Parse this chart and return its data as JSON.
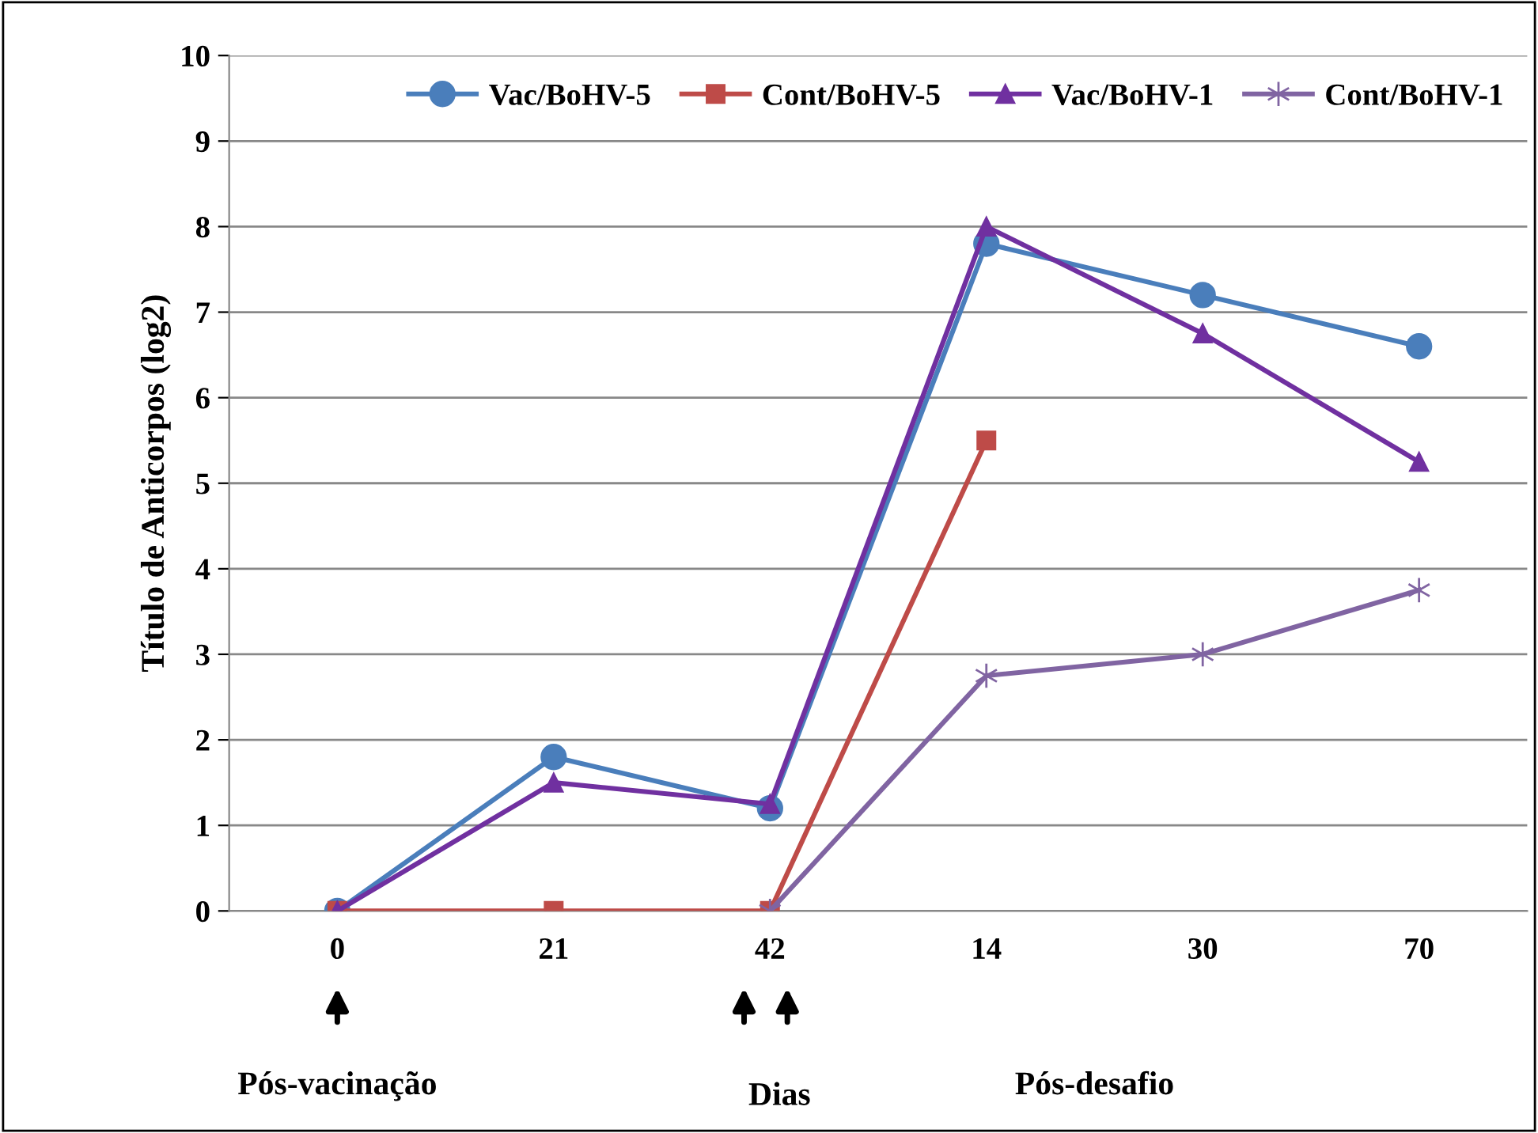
{
  "chart_data": {
    "type": "line",
    "categories": [
      "0",
      "21",
      "42",
      "14",
      "30",
      "70"
    ],
    "ylabel": "Título de Anticorpos (log2)",
    "xlabel": "Dias",
    "annotations": [
      "Pós-vacinação",
      "Pós-desafio"
    ],
    "ylim": [
      0,
      10
    ],
    "yticks": [
      0,
      1,
      2,
      3,
      4,
      5,
      6,
      7,
      8,
      9,
      10
    ],
    "grid": "y",
    "legend": "top",
    "series": [
      {
        "name": "Vac/BoHV-5",
        "color": "#4a7ebb",
        "marker": "circle",
        "values": [
          0,
          1.8,
          1.2,
          7.8,
          7.2,
          6.6
        ]
      },
      {
        "name": "Cont/BoHV-5",
        "color": "#be4b48",
        "marker": "square",
        "values": [
          0,
          0,
          0,
          5.5,
          null,
          null
        ]
      },
      {
        "name": "Vac/BoHV-1",
        "color": "#7030a0",
        "marker": "triangle",
        "values": [
          0,
          1.5,
          1.25,
          8.0,
          6.75,
          5.25
        ]
      },
      {
        "name": "Cont/BoHV-1",
        "color": "#8064a2",
        "marker": "cross",
        "values": [
          null,
          null,
          0,
          2.75,
          3.0,
          3.75
        ]
      }
    ]
  }
}
